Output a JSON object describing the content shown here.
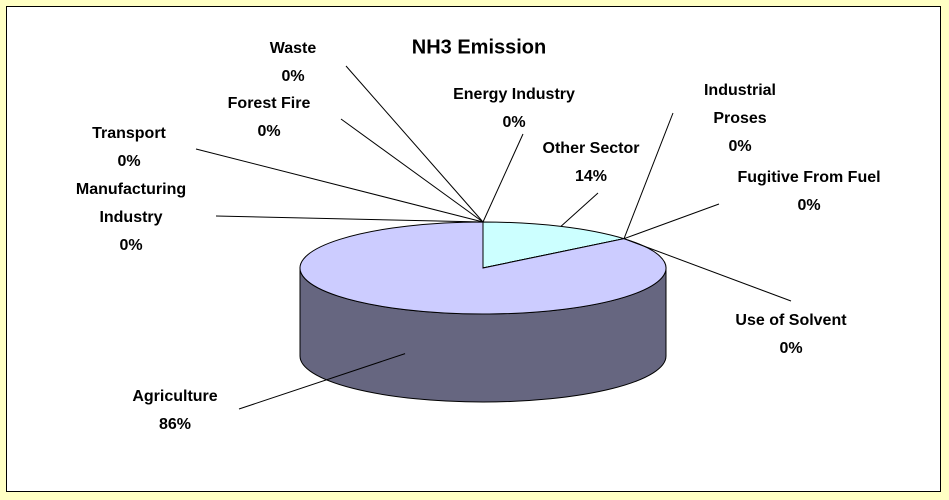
{
  "chart_data": {
    "type": "pie",
    "title": "NH3 Emission",
    "categories": [
      "Energy Industry",
      "Other Sector",
      "Industrial Proses",
      "Fugitive From Fuel",
      "Use of Solvent",
      "Agriculture",
      "Manufacturing Industry",
      "Transport",
      "Forest Fire",
      "Waste"
    ],
    "values": [
      0,
      14,
      0,
      0,
      0,
      86,
      0,
      0,
      0,
      0
    ],
    "value_labels": [
      "0%",
      "14%",
      "0%",
      "0%",
      "0%",
      "86%",
      "0%",
      "0%",
      "0%",
      "0%"
    ],
    "colors": [
      "#993366",
      "#ccffff",
      "#660066",
      "#ff8080",
      "#0066cc",
      "#ccccff",
      "#000080",
      "#ff00ff",
      "#ffff00",
      "#00ffff"
    ]
  }
}
